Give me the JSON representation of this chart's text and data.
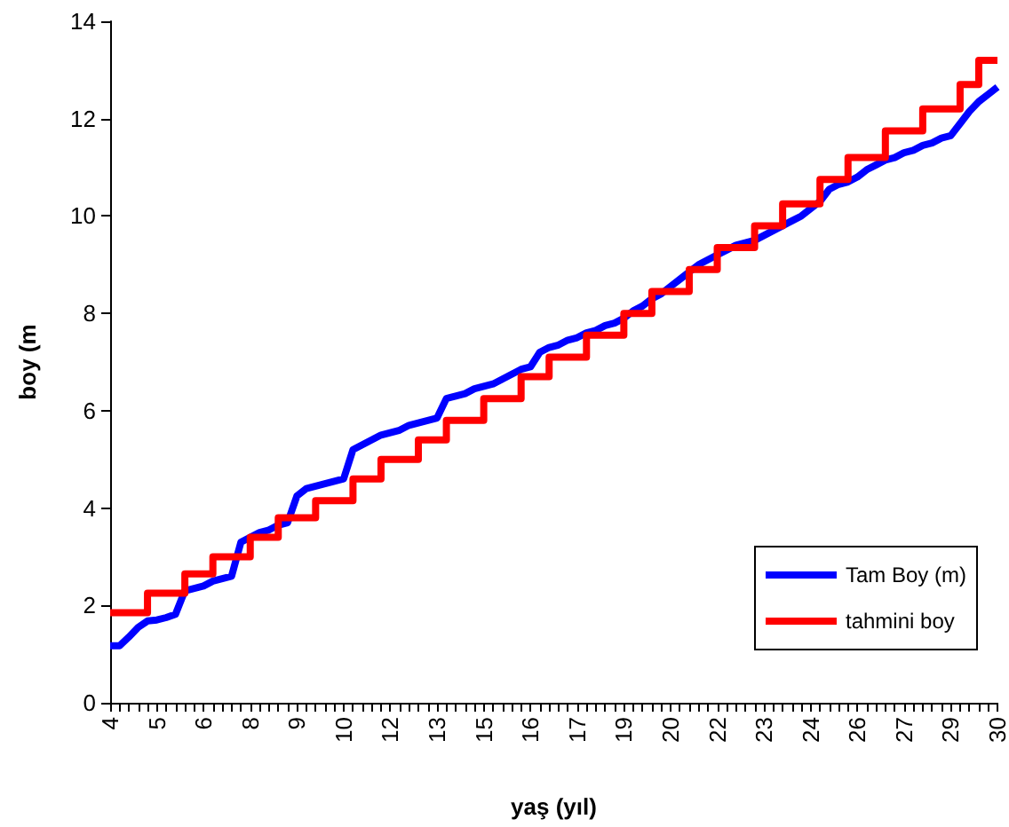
{
  "chart_data": {
    "type": "line",
    "xlabel": "yaş (yıl)",
    "ylabel": "boy (m",
    "categories": [
      "4",
      null,
      null,
      null,
      null,
      "5",
      null,
      null,
      null,
      null,
      "6",
      null,
      null,
      null,
      null,
      "8",
      null,
      null,
      null,
      null,
      "9",
      null,
      null,
      null,
      null,
      "10",
      null,
      null,
      null,
      null,
      "12",
      null,
      null,
      null,
      null,
      "13",
      null,
      null,
      null,
      null,
      "15",
      null,
      null,
      null,
      null,
      "16",
      null,
      null,
      null,
      null,
      "17",
      null,
      null,
      null,
      null,
      "19",
      null,
      null,
      null,
      null,
      "20",
      null,
      null,
      null,
      null,
      "22",
      null,
      null,
      null,
      null,
      "23",
      null,
      null,
      null,
      null,
      "24",
      null,
      null,
      null,
      null,
      "26",
      null,
      null,
      null,
      null,
      "27",
      null,
      null,
      null,
      null,
      "29",
      null,
      null,
      null,
      null,
      "30"
    ],
    "series": [
      {
        "name": "Tam Boy (m)",
        "color": "#0000ff",
        "values": [
          1.17,
          1.17,
          1.35,
          1.55,
          1.68,
          1.7,
          1.75,
          1.82,
          2.3,
          2.35,
          2.4,
          2.5,
          2.55,
          2.6,
          3.3,
          3.4,
          3.5,
          3.55,
          3.65,
          3.7,
          4.25,
          4.4,
          4.45,
          4.5,
          4.55,
          4.6,
          5.2,
          5.3,
          5.4,
          5.5,
          5.55,
          5.6,
          5.7,
          5.75,
          5.8,
          5.85,
          6.25,
          6.3,
          6.35,
          6.45,
          6.5,
          6.55,
          6.65,
          6.75,
          6.85,
          6.9,
          7.2,
          7.3,
          7.35,
          7.45,
          7.5,
          7.6,
          7.65,
          7.75,
          7.8,
          7.9,
          8.05,
          8.15,
          8.3,
          8.4,
          8.55,
          8.7,
          8.85,
          9.0,
          9.1,
          9.2,
          9.3,
          9.4,
          9.45,
          9.5,
          9.6,
          9.7,
          9.8,
          9.9,
          10.0,
          10.15,
          10.3,
          10.55,
          10.65,
          10.7,
          10.8,
          10.95,
          11.05,
          11.15,
          11.2,
          11.3,
          11.35,
          11.45,
          11.5,
          11.6,
          11.65,
          11.9,
          12.15,
          12.35,
          12.5,
          12.65
        ]
      },
      {
        "name": "tahmini boy",
        "type": "step",
        "color": "#ff0000",
        "values": [
          1.85,
          1.85,
          1.85,
          1.85,
          2.25,
          2.25,
          2.25,
          2.25,
          2.65,
          2.65,
          2.65,
          3.0,
          3.0,
          3.0,
          3.0,
          3.4,
          3.4,
          3.4,
          3.8,
          3.8,
          3.8,
          3.8,
          4.15,
          4.15,
          4.15,
          4.15,
          4.6,
          4.6,
          4.6,
          5.0,
          5.0,
          5.0,
          5.0,
          5.4,
          5.4,
          5.4,
          5.8,
          5.8,
          5.8,
          5.8,
          6.25,
          6.25,
          6.25,
          6.25,
          6.7,
          6.7,
          6.7,
          7.1,
          7.1,
          7.1,
          7.1,
          7.55,
          7.55,
          7.55,
          7.55,
          8.0,
          8.0,
          8.0,
          8.45,
          8.45,
          8.45,
          8.45,
          8.9,
          8.9,
          8.9,
          9.35,
          9.35,
          9.35,
          9.35,
          9.8,
          9.8,
          9.8,
          10.25,
          10.25,
          10.25,
          10.25,
          10.75,
          10.75,
          10.75,
          11.2,
          11.2,
          11.2,
          11.2,
          11.75,
          11.75,
          11.75,
          11.75,
          12.2,
          12.2,
          12.2,
          12.2,
          12.7,
          12.7,
          13.2,
          13.2,
          13.2
        ]
      }
    ],
    "ylim": [
      0,
      14
    ],
    "yticks": [
      0,
      2,
      4,
      6,
      8,
      10,
      12,
      14
    ],
    "grid": false,
    "legend": "bottom right",
    "marker": "none",
    "line_style": "solid"
  }
}
